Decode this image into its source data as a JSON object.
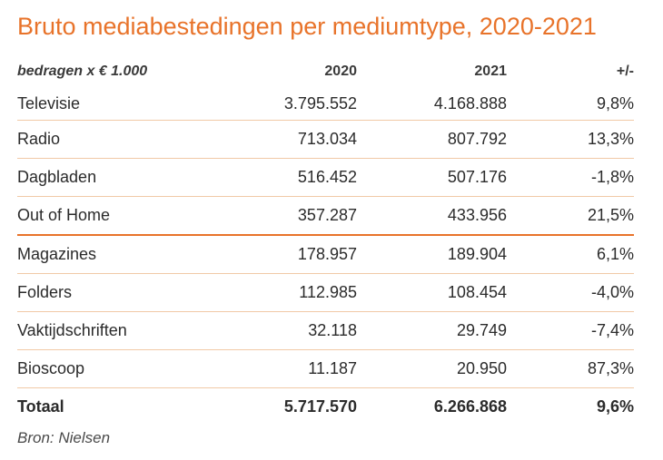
{
  "title": "Bruto mediabestedingen per mediumtype, 2020-2021",
  "header": {
    "label": "bedragen x € 1.000",
    "col2020": "2020",
    "col2021": "2021",
    "change": "+/-"
  },
  "rows": [
    {
      "medium": "Televisie",
      "v2020": "3.795.552",
      "v2021": "4.168.888",
      "change": "9,8%"
    },
    {
      "medium": "Radio",
      "v2020": "713.034",
      "v2021": "807.792",
      "change": "13,3%"
    },
    {
      "medium": "Dagbladen",
      "v2020": "516.452",
      "v2021": "507.176",
      "change": "-1,8%"
    },
    {
      "medium": "Out of Home",
      "v2020": "357.287",
      "v2021": "433.956",
      "change": "21,5%"
    },
    {
      "medium": "Magazines",
      "v2020": "178.957",
      "v2021": "189.904",
      "change": "6,1%"
    },
    {
      "medium": "Folders",
      "v2020": "112.985",
      "v2021": "108.454",
      "change": "-4,0%"
    },
    {
      "medium": "Vaktijdschriften",
      "v2020": "32.118",
      "v2021": "29.749",
      "change": "-7,4%"
    },
    {
      "medium": "Bioscoop",
      "v2020": "11.187",
      "v2021": "20.950",
      "change": "87,3%"
    }
  ],
  "total": {
    "medium": "Totaal",
    "v2020": "5.717.570",
    "v2021": "6.266.868",
    "change": "9,6%"
  },
  "source": "Bron: Nielsen",
  "colors": {
    "accent": "#e8732a",
    "rule": "#f1c9a6"
  }
}
